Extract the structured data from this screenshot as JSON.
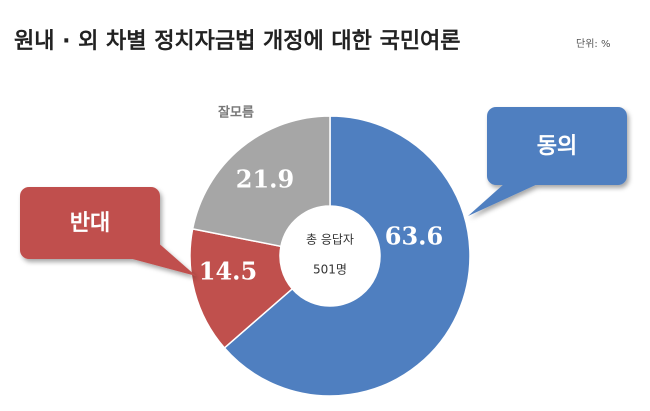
{
  "chart_data": {
    "type": "donut",
    "title": "원내 · 외 차별 정치자금법 개정에 대한 국민여론",
    "unit": "단위: %",
    "categories": [
      "동의",
      "반대",
      "잘모름"
    ],
    "values": [
      63.6,
      14.5,
      21.9
    ],
    "colors": [
      "#4f7fc0",
      "#c0504d",
      "#a6a6a6"
    ],
    "center_title": "총 응답자",
    "center_text": "501명"
  }
}
